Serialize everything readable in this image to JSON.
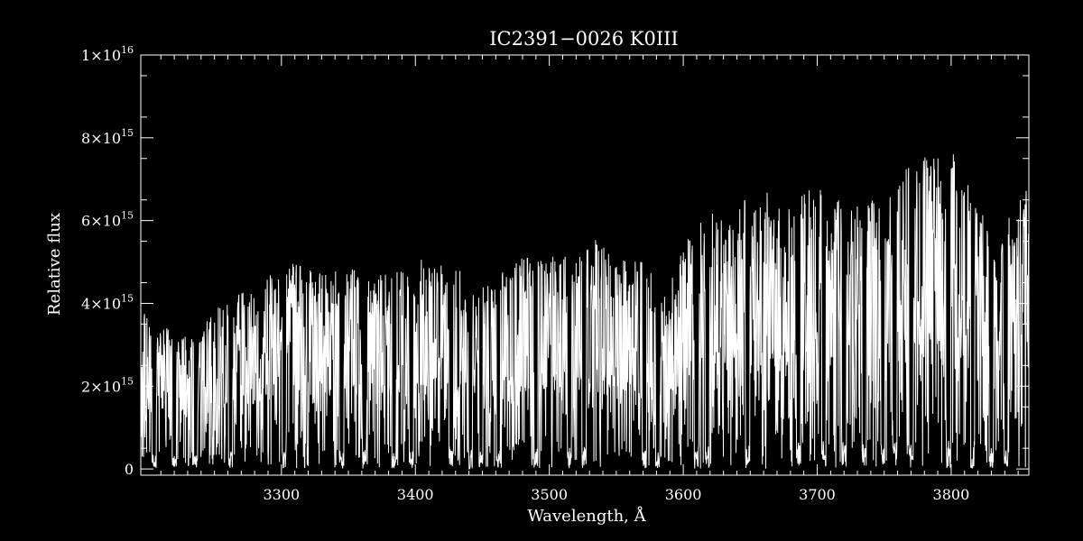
{
  "chart_data": {
    "type": "line",
    "title": "IC2391−0026   K0III",
    "xlabel": "Wavelength, Å",
    "ylabel": "Relative flux",
    "xlim": [
      3195,
      3858
    ],
    "ylim": [
      -150000000000000.0,
      1e+16
    ],
    "grid": false,
    "legend": "none",
    "x_ticks": [
      {
        "value": 3300,
        "label": "3300"
      },
      {
        "value": 3400,
        "label": "3400"
      },
      {
        "value": 3500,
        "label": "3500"
      },
      {
        "value": 3600,
        "label": "3600"
      },
      {
        "value": 3700,
        "label": "3700"
      },
      {
        "value": 3800,
        "label": "3800"
      }
    ],
    "y_ticks": [
      {
        "value": 0,
        "mantissa": "0",
        "exponent": ""
      },
      {
        "value": 2000000000000000.0,
        "mantissa": "2×10",
        "exponent": "15"
      },
      {
        "value": 4000000000000000.0,
        "mantissa": "4×10",
        "exponent": "15"
      },
      {
        "value": 6000000000000000.0,
        "mantissa": "6×10",
        "exponent": "15"
      },
      {
        "value": 8000000000000000.0,
        "mantissa": "8×10",
        "exponent": "15"
      },
      {
        "value": 1e+16,
        "mantissa": "1×10",
        "exponent": "16"
      }
    ],
    "series": [
      {
        "color": "#ffffff",
        "continuum_envelope": {
          "x": [
            3195,
            3205,
            3215,
            3225,
            3235,
            3245,
            3255,
            3265,
            3275,
            3285,
            3295,
            3305,
            3315,
            3325,
            3335,
            3345,
            3355,
            3365,
            3375,
            3385,
            3395,
            3405,
            3415,
            3425,
            3435,
            3445,
            3455,
            3465,
            3475,
            3485,
            3495,
            3505,
            3515,
            3525,
            3535,
            3545,
            3555,
            3565,
            3575,
            3585,
            3595,
            3605,
            3615,
            3625,
            3635,
            3645,
            3655,
            3665,
            3675,
            3685,
            3695,
            3705,
            3715,
            3725,
            3735,
            3745,
            3755,
            3765,
            3775,
            3785,
            3795,
            3805,
            3815,
            3825,
            3835,
            3845,
            3858
          ],
          "y": [
            3800000000000000.0,
            3600000000000000.0,
            3400000000000000.0,
            3200000000000000.0,
            3200000000000000.0,
            3600000000000000.0,
            4000000000000000.0,
            4200000000000000.0,
            4300000000000000.0,
            4500000000000000.0,
            4800000000000000.0,
            5000000000000000.0,
            4900000000000000.0,
            4800000000000000.0,
            4900000000000000.0,
            4700000000000000.0,
            5100000000000000.0,
            4600000000000000.0,
            4700000000000000.0,
            4900000000000000.0,
            4800000000000000.0,
            5100000000000000.0,
            4900000000000000.0,
            5000000000000000.0,
            4900000000000000.0,
            4500000000000000.0,
            4600000000000000.0,
            4800000000000000.0,
            5000000000000000.0,
            5200000000000000.0,
            5400000000000000.0,
            5300000000000000.0,
            5200000000000000.0,
            5400000000000000.0,
            5600000000000000.0,
            5300000000000000.0,
            5100000000000000.0,
            5200000000000000.0,
            4900000000000000.0,
            4200000000000000.0,
            5000000000000000.0,
            5800000000000000.0,
            6100000000000000.0,
            6300000000000000.0,
            6200000000000000.0,
            6500000000000000.0,
            6600000000000000.0,
            6700000000000000.0,
            6600000000000000.0,
            6500000000000000.0,
            7000000000000000.0,
            6800000000000000.0,
            6600000000000000.0,
            6500000000000000.0,
            6500000000000000.0,
            6600000000000000.0,
            6900000000000000.0,
            7300000000000000.0,
            7600000000000000.0,
            7700000000000000.0,
            7500000000000000.0,
            7700000000000000.0,
            7200000000000000.0,
            6000000000000000.0,
            5500000000000000.0,
            6300000000000000.0,
            6800000000000000.0
          ]
        },
        "strong_absorption_lines": [
          3205,
          3220,
          3236,
          3262,
          3302,
          3345,
          3362,
          3384,
          3397,
          3427,
          3441,
          3449,
          3462,
          3490,
          3515,
          3526,
          3571,
          3581,
          3610,
          3618,
          3648,
          3686,
          3705,
          3720,
          3735,
          3749,
          3758,
          3770,
          3798,
          3816,
          3830,
          3841
        ],
        "note": "Dense absorption-line stellar spectrum; flux varies rapidly between near zero and the continuum envelope."
      }
    ]
  }
}
